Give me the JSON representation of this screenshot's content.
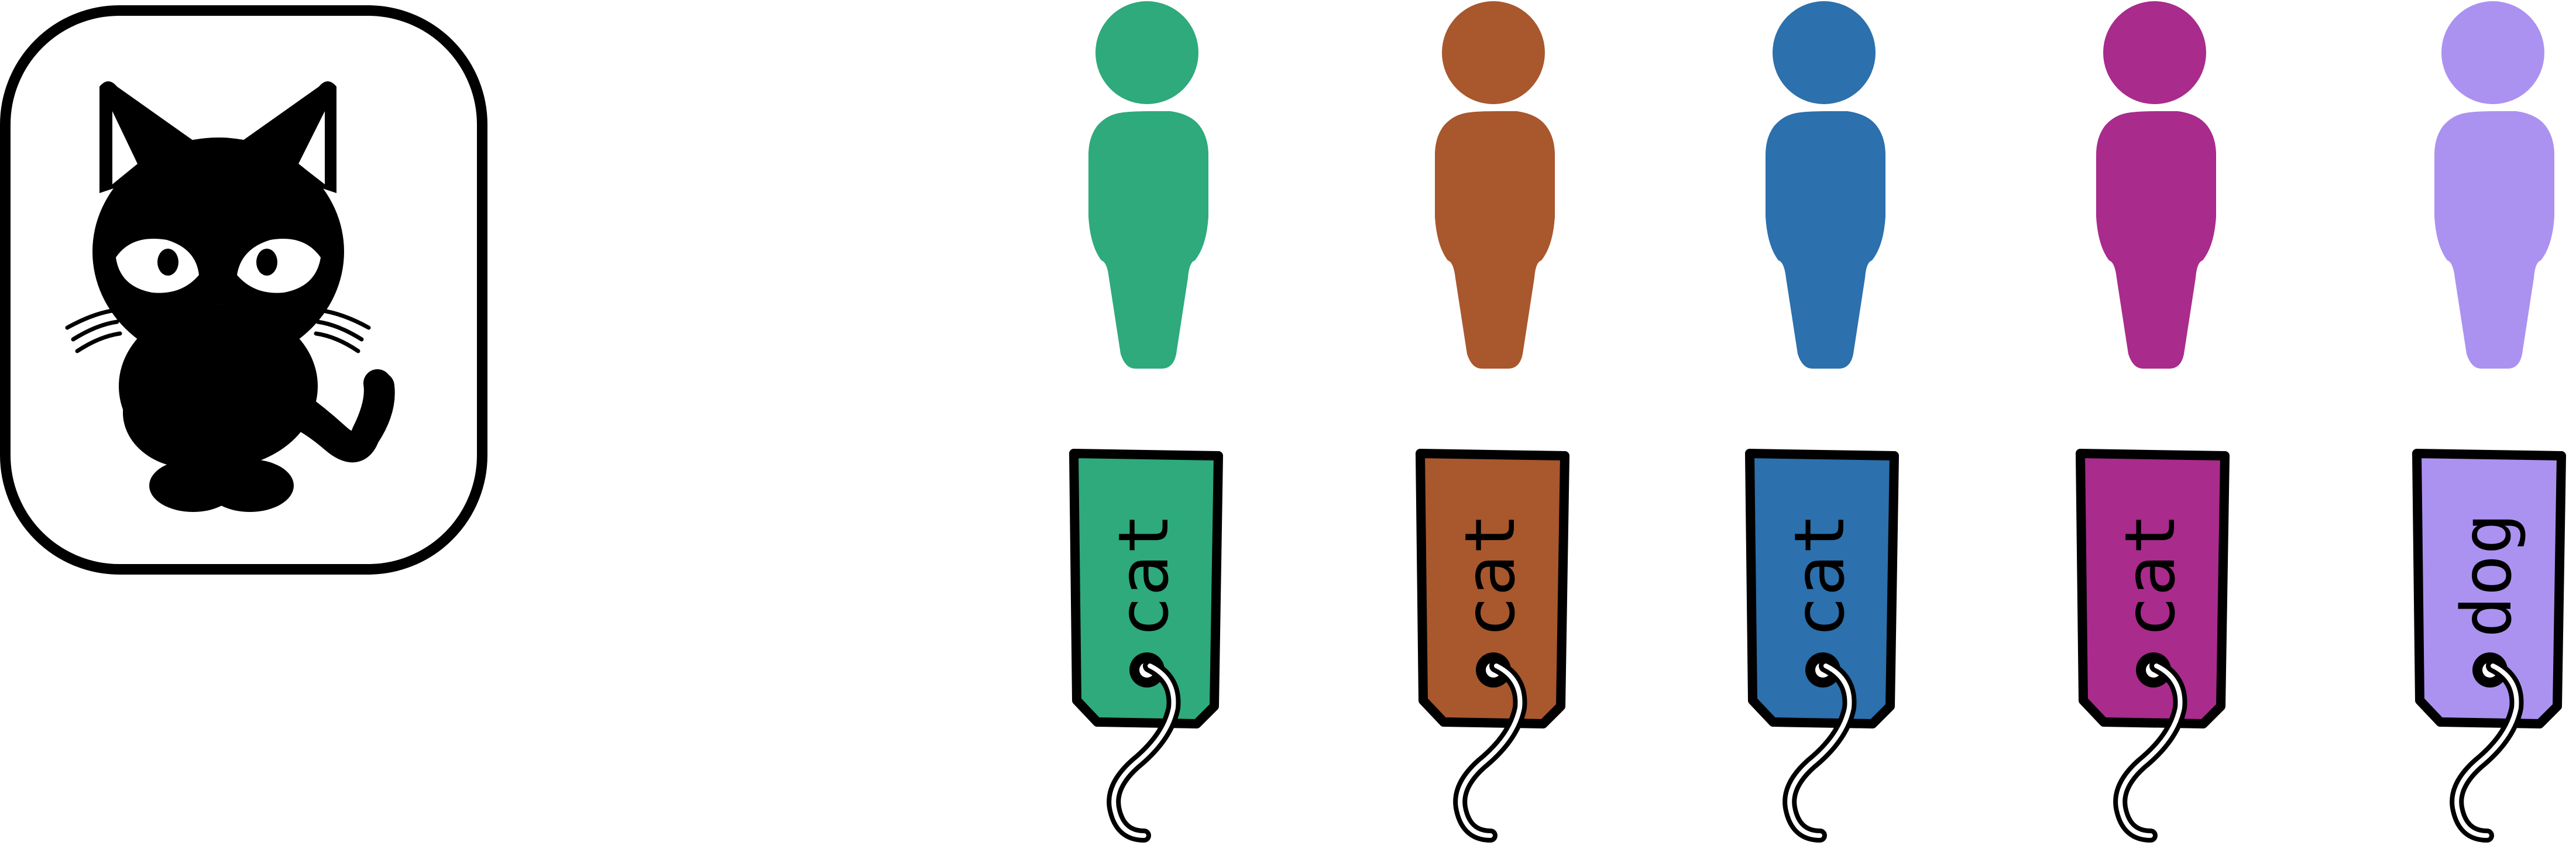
{
  "reference": {
    "name": "cat",
    "icon": "cat-icon"
  },
  "people": [
    {
      "color": "#2eaa7d",
      "label": "cat"
    },
    {
      "color": "#a9572d",
      "label": "cat"
    },
    {
      "color": "#2c70ad",
      "label": "cat"
    },
    {
      "color": "#a92b8c",
      "label": "cat"
    },
    {
      "color": "#ab92f0",
      "label": "dog"
    }
  ]
}
